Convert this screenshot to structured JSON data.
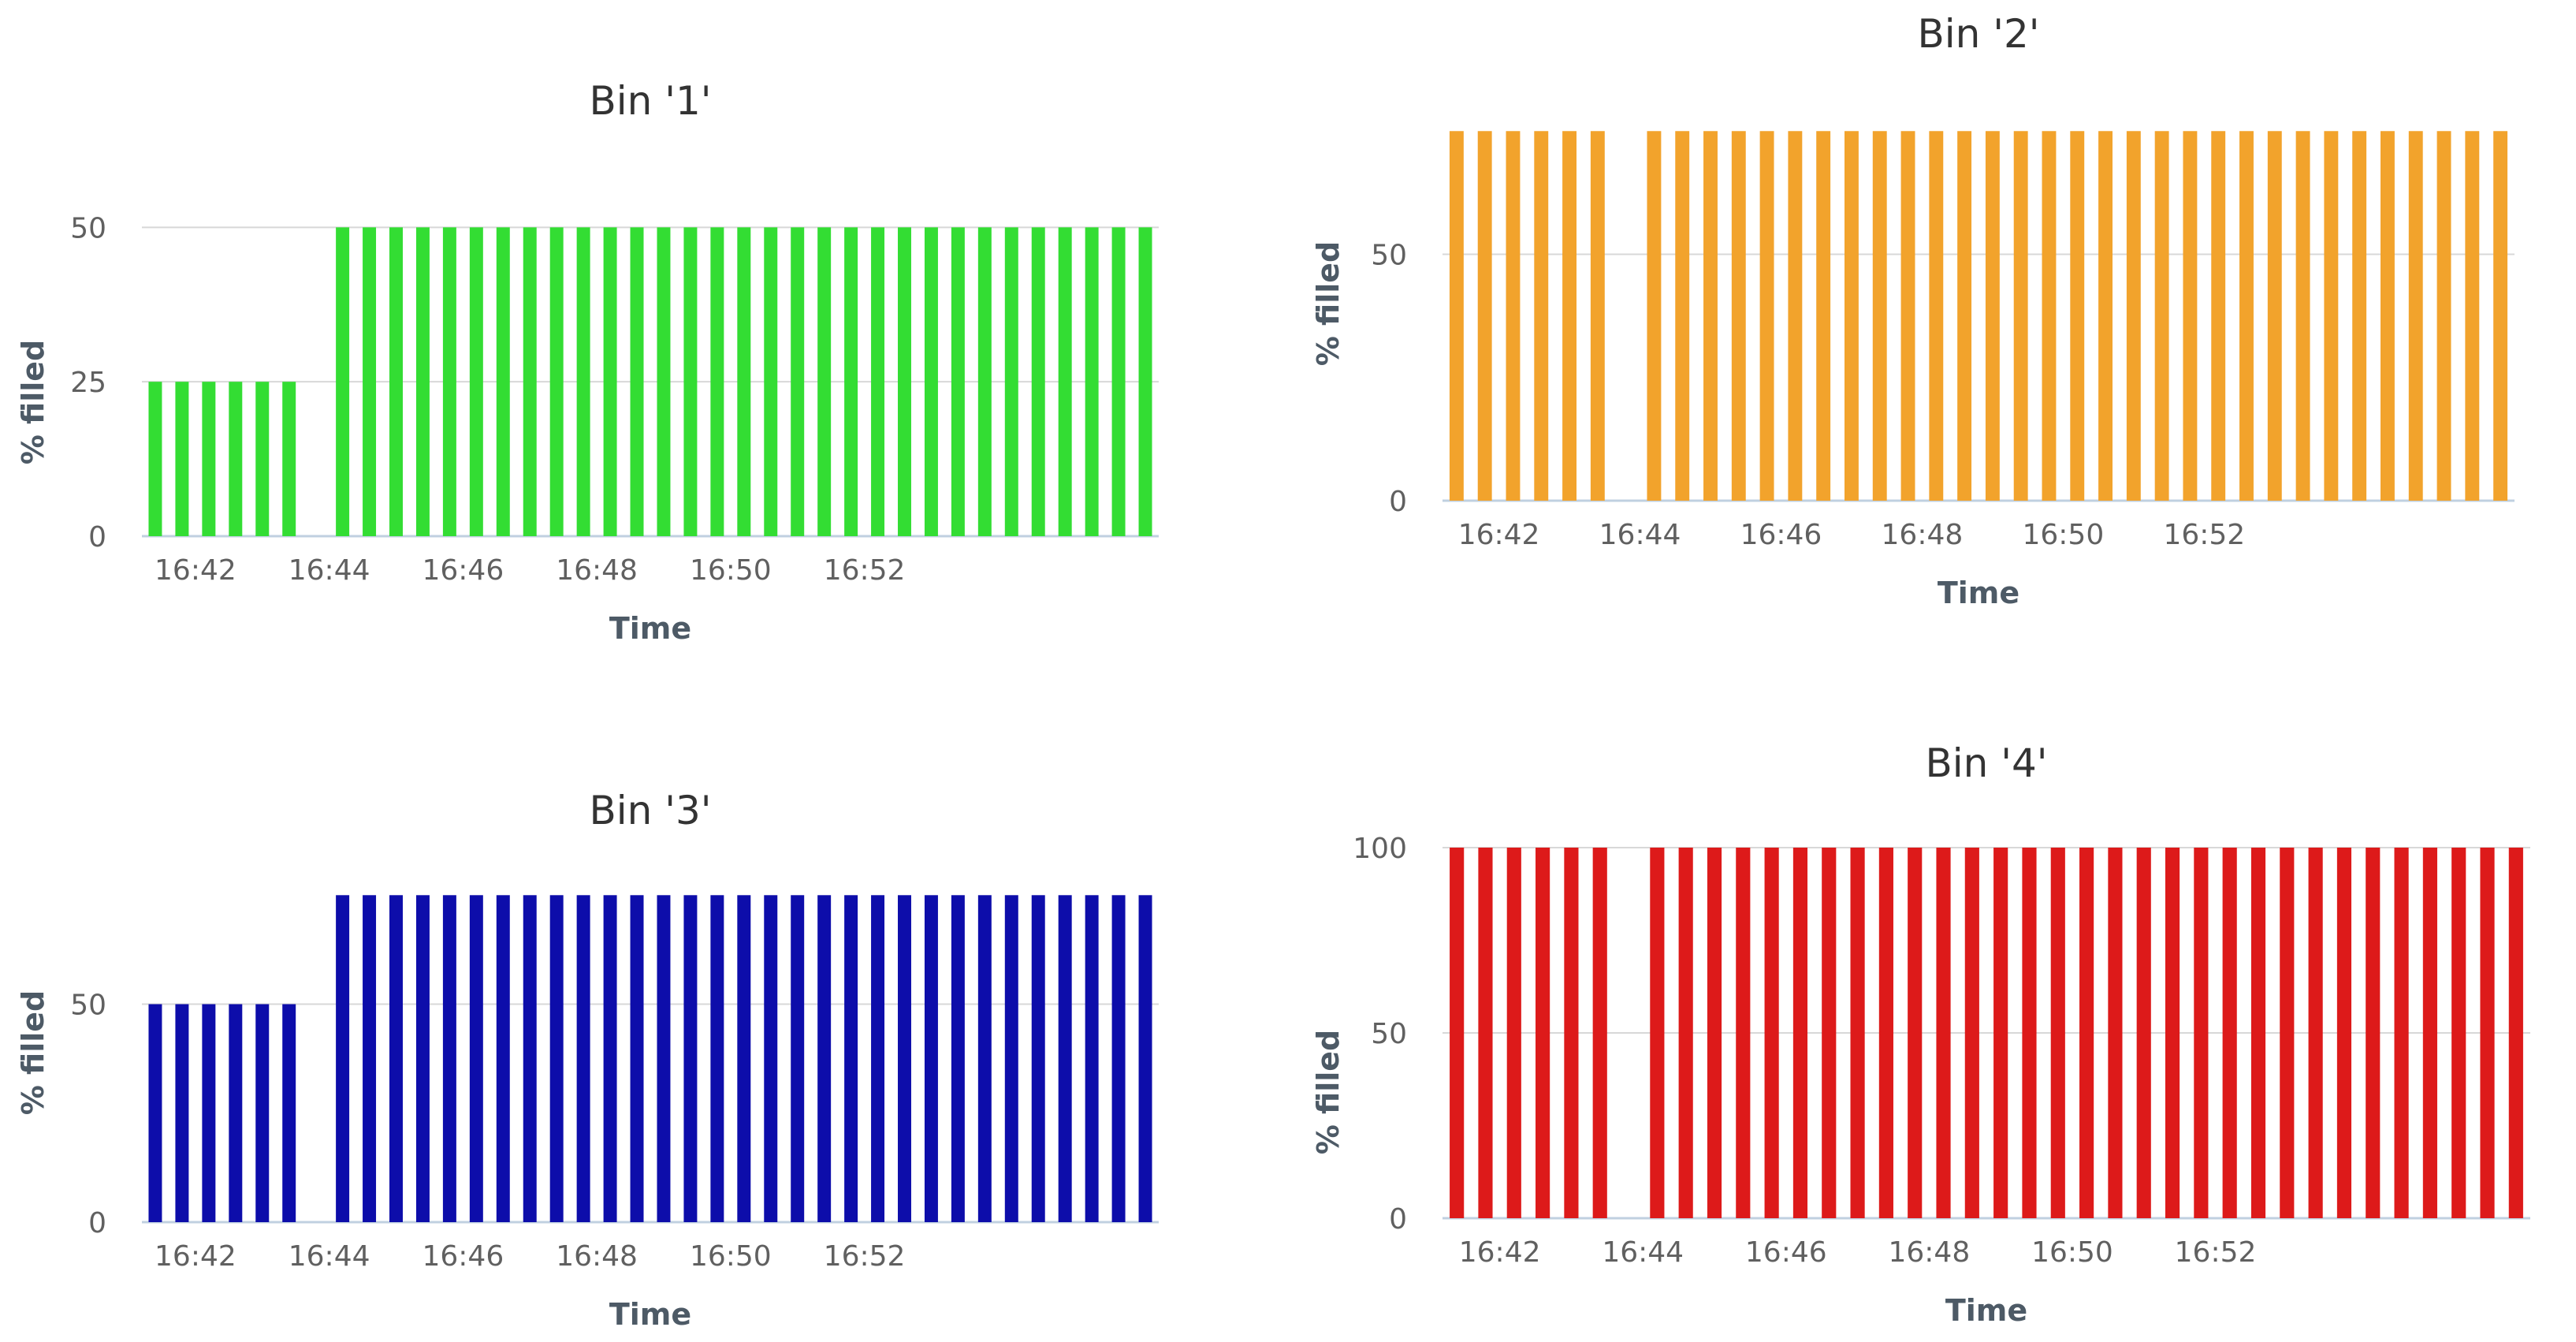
{
  "chart_data": [
    {
      "type": "bar",
      "title": "Bin '1'",
      "xlabel": "Time",
      "ylabel": "% filled",
      "color": "#33dd33",
      "ylim": [
        0,
        60
      ],
      "yticks": [
        0,
        25,
        50
      ],
      "x_tick_labels": [
        "16:42",
        "16:44",
        "16:46",
        "16:48",
        "16:50",
        "16:52"
      ],
      "series": [
        {
          "values": [
            25,
            25,
            25,
            25,
            25,
            25,
            0,
            50,
            50,
            50,
            50,
            50,
            50,
            50,
            50,
            50,
            50,
            50,
            50,
            50,
            50,
            50,
            50,
            50,
            50,
            50,
            50,
            50,
            50,
            50,
            50,
            50,
            50,
            50,
            50,
            50,
            50,
            50
          ]
        }
      ]
    },
    {
      "type": "bar",
      "title": "Bin '2'",
      "xlabel": "Time",
      "ylabel": "% filled",
      "color": "#f2a32c",
      "ylim": [
        0,
        80
      ],
      "yticks": [
        0,
        50
      ],
      "x_tick_labels": [
        "16:42",
        "16:44",
        "16:46",
        "16:48",
        "16:50",
        "16:52"
      ],
      "series": [
        {
          "values": [
            75,
            75,
            75,
            75,
            75,
            75,
            0,
            75,
            75,
            75,
            75,
            75,
            75,
            75,
            75,
            75,
            75,
            75,
            75,
            75,
            75,
            75,
            75,
            75,
            75,
            75,
            75,
            75,
            75,
            75,
            75,
            75,
            75,
            75,
            75,
            75,
            75,
            75
          ]
        }
      ]
    },
    {
      "type": "bar",
      "title": "Bin '3'",
      "xlabel": "Time",
      "ylabel": "% filled",
      "color": "#0d0daa",
      "ylim": [
        0,
        85
      ],
      "yticks": [
        0,
        50
      ],
      "x_tick_labels": [
        "16:42",
        "16:44",
        "16:46",
        "16:48",
        "16:50",
        "16:52"
      ],
      "series": [
        {
          "values": [
            50,
            50,
            50,
            50,
            50,
            50,
            0,
            75,
            75,
            75,
            75,
            75,
            75,
            75,
            75,
            75,
            75,
            75,
            75,
            75,
            75,
            75,
            75,
            75,
            75,
            75,
            75,
            75,
            75,
            75,
            75,
            75,
            75,
            75,
            75,
            75,
            75,
            75
          ]
        }
      ]
    },
    {
      "type": "bar",
      "title": "Bin '4'",
      "xlabel": "Time",
      "ylabel": "% filled",
      "color": "#dd1a1a",
      "ylim": [
        0,
        100
      ],
      "yticks": [
        0,
        50,
        100
      ],
      "x_tick_labels": [
        "16:42",
        "16:44",
        "16:46",
        "16:48",
        "16:50",
        "16:52"
      ],
      "series": [
        {
          "values": [
            100,
            100,
            100,
            100,
            100,
            100,
            0,
            100,
            100,
            100,
            100,
            100,
            100,
            100,
            100,
            100,
            100,
            100,
            100,
            100,
            100,
            100,
            100,
            100,
            100,
            100,
            100,
            100,
            100,
            100,
            100,
            100,
            100,
            100,
            100,
            100,
            100,
            100
          ]
        }
      ]
    }
  ]
}
